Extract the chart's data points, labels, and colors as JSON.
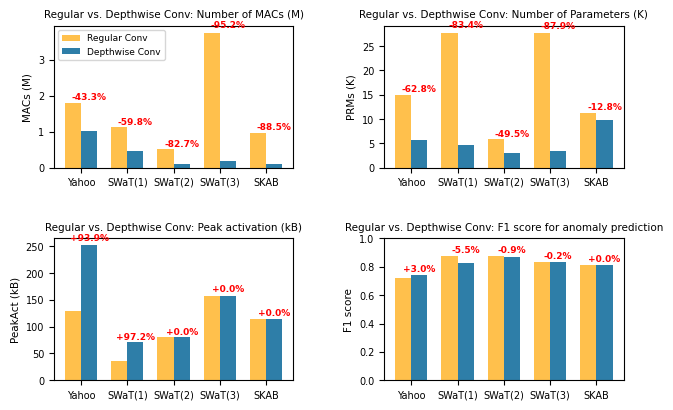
{
  "categories": [
    "Yahoo",
    "SWaT(1)",
    "SWaT(2)",
    "SWaT(3)",
    "SKAB"
  ],
  "regular_color": "#FFC04C",
  "depthwise_color": "#2E7EA8",
  "annotation_color": "red",
  "bar_width": 0.35,
  "macs_regular": [
    1.8,
    1.13,
    0.53,
    3.75,
    0.97
  ],
  "macs_depthwise": [
    1.02,
    0.455,
    0.092,
    0.18,
    0.112
  ],
  "macs_pct": [
    "-43.3%",
    "-59.8%",
    "-82.7%",
    "-95.2%",
    "-88.5%"
  ],
  "macs_title": "Regular vs. Depthwise Conv: Number of MACs (M)",
  "macs_ylabel": "MACs (M)",
  "params_regular": [
    15.0,
    27.8,
    5.8,
    27.7,
    11.3
  ],
  "params_depthwise": [
    5.58,
    4.63,
    2.93,
    3.33,
    9.86
  ],
  "params_pct": [
    "-62.8%",
    "-83.4%",
    "-49.5%",
    "-87.9%",
    "-12.8%"
  ],
  "params_title": "Regular vs. Depthwise Conv: Number of Parameters (K)",
  "params_ylabel": "PRMs (K)",
  "peak_regular": [
    130,
    36,
    81,
    158,
    115
  ],
  "peak_depthwise": [
    252,
    71,
    81,
    158,
    115
  ],
  "peak_pct": [
    "+93.9%",
    "+97.2%",
    "+0.0%",
    "+0.0%",
    "+0.0%"
  ],
  "peak_title": "Regular vs. Depthwise Conv: Peak activation (kB)",
  "peak_ylabel": "PeakAct (kB)",
  "f1_regular": [
    0.72,
    0.875,
    0.875,
    0.835,
    0.81
  ],
  "f1_depthwise": [
    0.742,
    0.827,
    0.867,
    0.833,
    0.81
  ],
  "f1_pct": [
    "+3.0%",
    "-5.5%",
    "-0.9%",
    "-0.2%",
    "+0.0%"
  ],
  "f1_title": "Regular vs. Depthwise Conv: F1 score for anomaly prediction",
  "f1_ylabel": "F1 score",
  "legend_labels": [
    "Regular Conv",
    "Depthwise Conv"
  ]
}
